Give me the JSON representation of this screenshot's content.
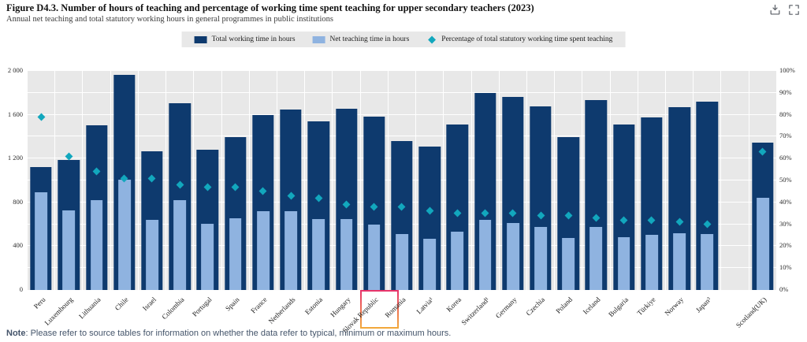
{
  "header": {
    "title": "Figure D4.3. Number of hours of teaching and percentage of working time spent teaching for upper secondary teachers (2023)",
    "subtitle": "Annual net teaching and total statutory working hours in general programmes in public institutions",
    "icons": [
      {
        "name": "download-icon"
      },
      {
        "name": "fullscreen-icon"
      }
    ]
  },
  "legend": {
    "items": [
      {
        "label": "Total working time in hours",
        "shape": "square",
        "color": "#0e3a6e"
      },
      {
        "label": "Net teaching time in hours",
        "shape": "square",
        "color": "#8fb3e0"
      },
      {
        "label": "Percentage of total statutory working time spent teaching",
        "shape": "diamond",
        "color": "#12a7bd"
      }
    ]
  },
  "chart_data": {
    "type": "bar",
    "title": "Figure D4.3. Number of hours of teaching and percentage of working time spent teaching for upper secondary teachers (2023)",
    "subtitle": "Annual net teaching and total statutory working hours in general programmes in public institutions",
    "categories": [
      "Peru",
      "Luxembourg",
      "Lithuania",
      "Chile",
      "Israel",
      "Colombia",
      "Portugal",
      "Spain",
      "France",
      "Netherlands",
      "Estonia",
      "Hungary",
      "Slovak Republic",
      "Romania",
      "Latvia¹",
      "Korea",
      "Switzerland¹",
      "Germany",
      "Czechia",
      "Poland",
      "Iceland",
      "Bulgaria",
      "Türkiye",
      "Norway",
      "Japan³",
      "Scotland(UK)"
    ],
    "series": [
      {
        "name": "Total working time in hours",
        "axis": "left",
        "color": "#0e3a6e",
        "values": [
          1120,
          1190,
          1505,
          1963,
          1264,
          1705,
          1284,
          1398,
          1600,
          1650,
          1537,
          1655,
          1584,
          1360,
          1310,
          1508,
          1796,
          1763,
          1678,
          1398,
          1732,
          1512,
          1576,
          1670,
          1719,
          1345
        ]
      },
      {
        "name": "Net teaching time in hours",
        "axis": "left",
        "color": "#8fb3e0",
        "values": [
          890,
          730,
          818,
          1006,
          640,
          820,
          601,
          655,
          720,
          718,
          650,
          645,
          598,
          514,
          470,
          534,
          638,
          614,
          573,
          473,
          578,
          480,
          502,
          521,
          510,
          845
        ]
      },
      {
        "name": "Percentage of total statutory working time spent teaching",
        "axis": "right",
        "color": "#12a7bd",
        "values": [
          79,
          61,
          54,
          51,
          51,
          48,
          47,
          47,
          45,
          43,
          42,
          39,
          38,
          38,
          36,
          35,
          35,
          35,
          34,
          34,
          33,
          32,
          32,
          31,
          30,
          63
        ]
      }
    ],
    "ylim_left": [
      0,
      2000
    ],
    "ylim_right": [
      0,
      100
    ],
    "ticks_left": [
      {
        "label": "0",
        "value": 0
      },
      {
        "label": "400",
        "value": 400
      },
      {
        "label": "800",
        "value": 800
      },
      {
        "label": "1 200",
        "value": 1200
      },
      {
        "label": "1 600",
        "value": 1600
      },
      {
        "label": "2 000",
        "value": 2000
      }
    ],
    "ticks_right": [
      {
        "label": "0%",
        "value": 0
      },
      {
        "label": "10%",
        "value": 10
      },
      {
        "label": "20%",
        "value": 20
      },
      {
        "label": "30%",
        "value": 30
      },
      {
        "label": "40%",
        "value": 40
      },
      {
        "label": "50%",
        "value": 50
      },
      {
        "label": "60%",
        "value": 60
      },
      {
        "label": "70%",
        "value": 70
      },
      {
        "label": "80%",
        "value": 80
      },
      {
        "label": "90%",
        "value": 90
      },
      {
        "label": "100%",
        "value": 100
      }
    ],
    "gridlines_pct": [
      10,
      20,
      30,
      40,
      50,
      60,
      70,
      80,
      90,
      100
    ],
    "gap_before_index": 25,
    "highlighted_index": 13,
    "legend_position": "top",
    "grid": true
  },
  "note": {
    "label": "Note",
    "text": ": Please refer to source tables for information on whether the data refer to typical, minimum or maximum hours."
  },
  "colors": {
    "total_bar": "#0e3a6e",
    "teaching_bar": "#8fb3e0",
    "percentage_marker": "#12a7bd",
    "plot_background": "#e8e8e8",
    "gridline": "#ffffff",
    "highlight_border_top": "#e8336b",
    "highlight_border_bottom": "#f2a93b"
  }
}
